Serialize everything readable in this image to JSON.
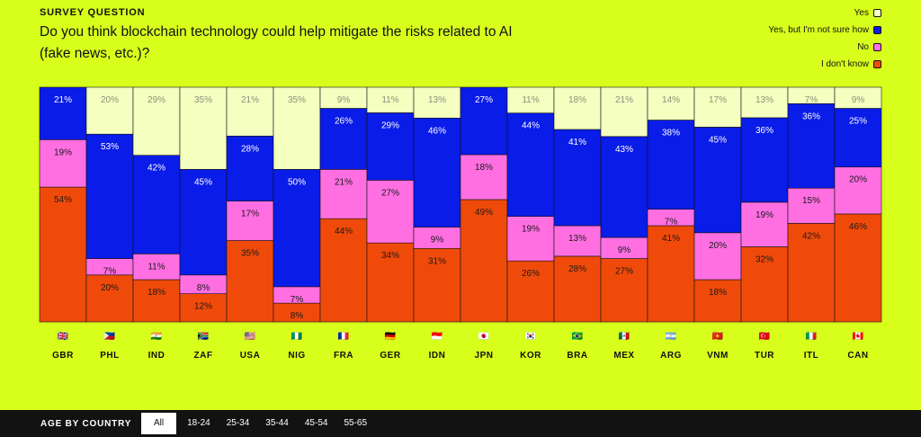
{
  "header": {
    "eyebrow": "SURVEY QUESTION",
    "question": "Do you think blockchain technology could help mitigate the risks related to AI (fake news, etc.)?"
  },
  "legend": [
    {
      "label": "Yes",
      "color": "#f4ffc0"
    },
    {
      "label": "Yes, but I'm not sure how",
      "color": "#0a1ce8"
    },
    {
      "label": "No",
      "color": "#ff6fe2"
    },
    {
      "label": "I don't know",
      "color": "#f04a0a"
    }
  ],
  "chart_data": {
    "type": "bar",
    "stacked": true,
    "normalized": true,
    "title": "Do you think blockchain technology could help mitigate the risks related to AI (fake news, etc.)?",
    "categories": [
      "GBR",
      "PHL",
      "IND",
      "ZAF",
      "USA",
      "NIG",
      "FRA",
      "GER",
      "IDN",
      "JPN",
      "KOR",
      "BRA",
      "MEX",
      "ARG",
      "VNM",
      "TUR",
      "ITL",
      "CAN"
    ],
    "flags": [
      "🇬🇧",
      "🇵🇭",
      "🇮🇳",
      "🇿🇦",
      "🇺🇸",
      "🇳🇬",
      "🇫🇷",
      "🇩🇪",
      "🇮🇩",
      "🇯🇵",
      "🇰🇷",
      "🇧🇷",
      "🇲🇽",
      "🇦🇷",
      "🇻🇳",
      "🇹🇷",
      "🇮🇹",
      "🇨🇦"
    ],
    "unit": "%",
    "series": [
      {
        "name": "I don't know",
        "color": "#f04a0a",
        "values": [
          54,
          20,
          18,
          12,
          35,
          8,
          44,
          34,
          31,
          49,
          26,
          28,
          27,
          41,
          18,
          32,
          42,
          46
        ]
      },
      {
        "name": "No",
        "color": "#ff6fe2",
        "values": [
          19,
          7,
          11,
          8,
          17,
          7,
          21,
          27,
          9,
          18,
          19,
          13,
          9,
          7,
          20,
          19,
          15,
          20
        ]
      },
      {
        "name": "Yes, but I'm not sure how",
        "color": "#0a1ce8",
        "values": [
          21,
          53,
          42,
          45,
          28,
          50,
          26,
          29,
          46,
          27,
          44,
          41,
          43,
          38,
          45,
          36,
          36,
          25
        ]
      },
      {
        "name": "Yes",
        "color": "#f4ffc0",
        "values": [
          null,
          20,
          29,
          35,
          21,
          35,
          9,
          11,
          13,
          null,
          11,
          18,
          21,
          14,
          17,
          13,
          7,
          9
        ]
      }
    ]
  },
  "footer": {
    "title": "AGE BY COUNTRY",
    "tabs": [
      "All",
      "18-24",
      "25-34",
      "35-44",
      "45-54",
      "55-65"
    ],
    "active_tab": "All"
  }
}
